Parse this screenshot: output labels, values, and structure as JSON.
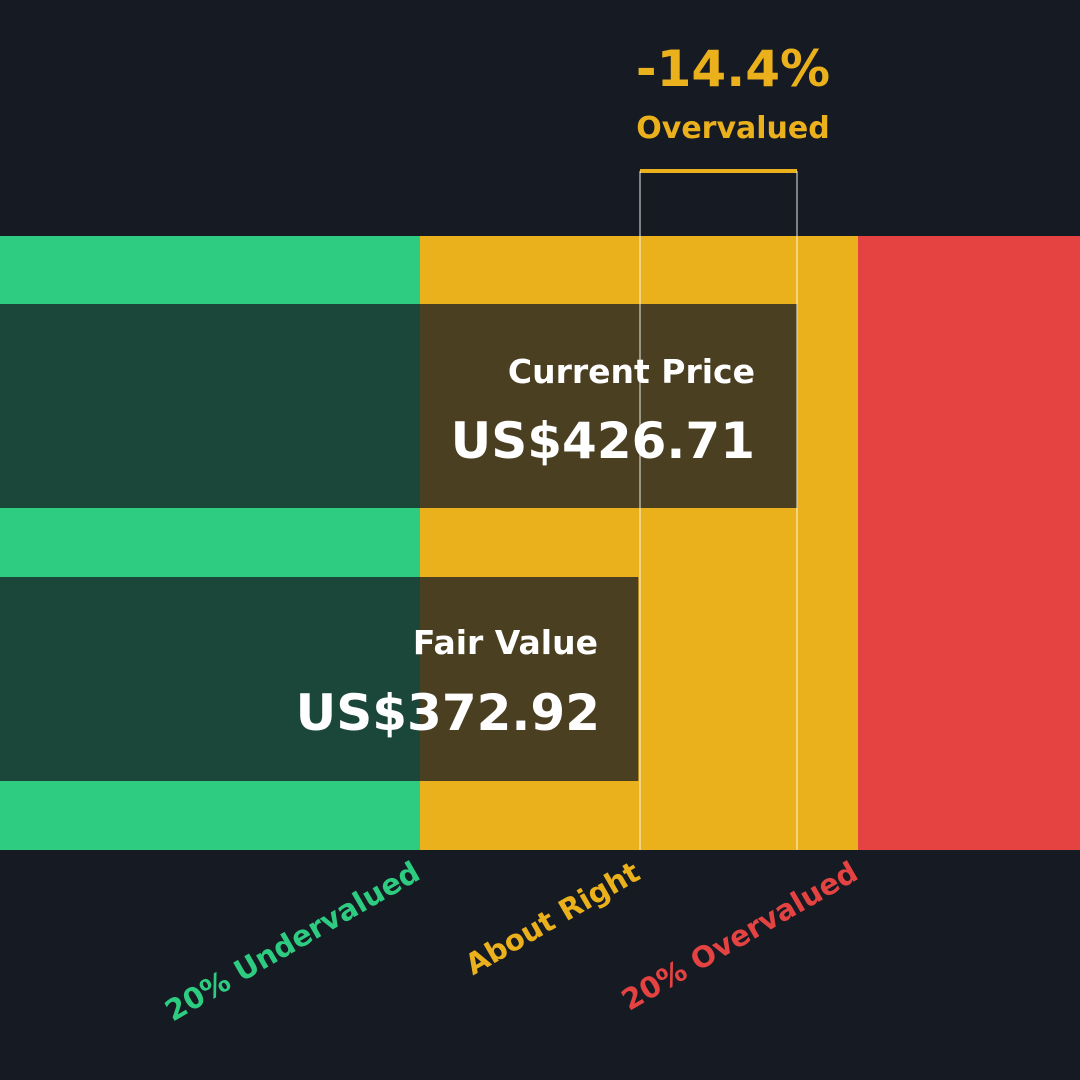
{
  "header": {
    "percent": "-14.4%",
    "label": "Overvalued"
  },
  "current_price": {
    "label": "Current Price",
    "value": 426.71,
    "value_label": "US$426.71"
  },
  "fair_value": {
    "label": "Fair Value",
    "value": 372.92,
    "value_label": "US$372.92"
  },
  "zones": [
    "20% Undervalued",
    "About Right",
    "20% Overvalued"
  ]
}
